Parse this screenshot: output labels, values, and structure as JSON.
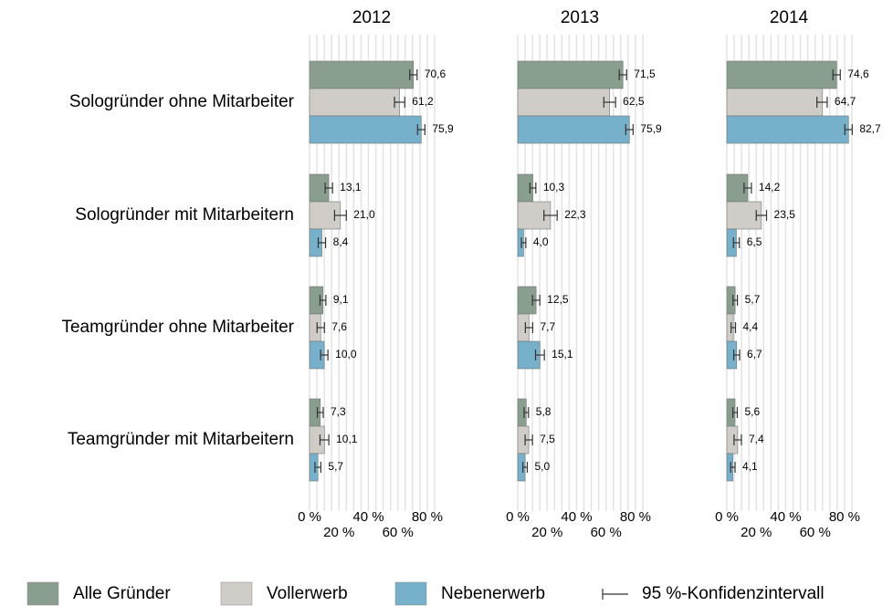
{
  "chart_data": {
    "type": "bar",
    "orientation": "horizontal",
    "categories": [
      "Sologründer ohne Mitarbeiter",
      "Sologründer mit Mitarbeitern",
      "Teamgründer ohne Mitarbeiter",
      "Teamgründer mit Mitarbeitern"
    ],
    "series": [
      {
        "name": "Alle Gründer",
        "color": "#8a9e90"
      },
      {
        "name": "Vollerwerb",
        "color": "#d0ccc7"
      },
      {
        "name": "Nebenerwerb",
        "color": "#77b0cb"
      }
    ],
    "error_legend": "95 %-Konfidenzintervall",
    "xlim": [
      0,
      85
    ],
    "xticks": [
      {
        "value": 0,
        "label": "0 %"
      },
      {
        "value": 20,
        "label": "20 %"
      },
      {
        "value": 40,
        "label": "40 %"
      },
      {
        "value": 60,
        "label": "60 %"
      },
      {
        "value": 80,
        "label": "80 %"
      }
    ],
    "xgrid": [
      0,
      5,
      10,
      15,
      20,
      25,
      30,
      35,
      40,
      45,
      50,
      55,
      60,
      65,
      70,
      75,
      80,
      85
    ],
    "grid": true,
    "legend_position": "bottom",
    "panels": [
      {
        "title": "2012",
        "values": [
          [
            70.6,
            13.1,
            9.1,
            7.3
          ],
          [
            61.2,
            21.0,
            7.6,
            10.1
          ],
          [
            75.9,
            8.4,
            10.0,
            5.7
          ]
        ],
        "value_labels": [
          [
            "70,6",
            "13,1",
            "9,1",
            "7,3"
          ],
          [
            "61,2",
            "21,0",
            "7,6",
            "10,1"
          ],
          [
            "75,9",
            "8,4",
            "10,0",
            "5,7"
          ]
        ],
        "errors": [
          [
            2.5,
            2.5,
            2.0,
            2.0
          ],
          [
            3.5,
            4.0,
            2.5,
            3.0
          ],
          [
            2.5,
            2.5,
            2.5,
            2.0
          ]
        ]
      },
      {
        "title": "2013",
        "values": [
          [
            71.5,
            10.3,
            12.5,
            5.8
          ],
          [
            62.5,
            22.3,
            7.7,
            7.5
          ],
          [
            75.9,
            4.0,
            15.1,
            5.0
          ]
        ],
        "value_labels": [
          [
            "71,5",
            "10,3",
            "12,5",
            "5,8"
          ],
          [
            "62,5",
            "22,3",
            "7,7",
            "7,5"
          ],
          [
            "75,9",
            "4,0",
            "15,1",
            "5,0"
          ]
        ],
        "errors": [
          [
            2.5,
            2.0,
            2.5,
            1.5
          ],
          [
            4.0,
            4.5,
            2.5,
            2.5
          ],
          [
            2.5,
            1.5,
            3.0,
            1.5
          ]
        ]
      },
      {
        "title": "2014",
        "values": [
          [
            74.6,
            14.2,
            5.7,
            5.6
          ],
          [
            64.7,
            23.5,
            4.4,
            7.4
          ],
          [
            82.7,
            6.5,
            6.7,
            4.1
          ]
        ],
        "value_labels": [
          [
            "74,6",
            "14,2",
            "5,7",
            "5,6"
          ],
          [
            "64,7",
            "23,5",
            "4,4",
            "7,4"
          ],
          [
            "82,7",
            "6,5",
            "6,7",
            "4,1"
          ]
        ],
        "errors": [
          [
            2.5,
            2.5,
            1.5,
            1.5
          ],
          [
            3.5,
            3.5,
            1.5,
            2.5
          ],
          [
            2.5,
            2.0,
            2.0,
            1.5
          ]
        ]
      }
    ]
  }
}
